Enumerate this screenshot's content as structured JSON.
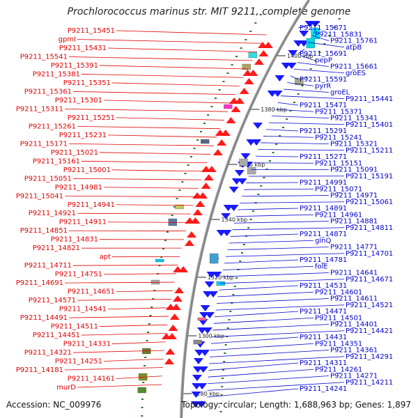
{
  "title": "Prochlorococcus marinus str. MIT 9211, complete genome",
  "footer": {
    "accession": "Accession: NC_009976",
    "info": "Topology: circular; Length: 1,688,963 bp; Genes: 1,897"
  },
  "colors": {
    "left_label": "#e00000",
    "right_label": "#0000cc",
    "forward_gene": "#ff1a1a",
    "reverse_gene": "#1a1aff",
    "backbone": "#888888",
    "tick": "#227722"
  },
  "kbp_marks": [
    "1400 kbp",
    "1380 kbp",
    "1360 kbp",
    "1340 kbp",
    "1320 kbp",
    "1300 kbp",
    "1280 kbp"
  ],
  "left_labels": [
    "P9211_15451",
    "gpmI",
    "P9211_15431",
    "P9211_15541",
    "P9211_15391",
    "P9211_15381",
    "P9211_15351",
    "P9211_15361",
    "P9211_15301",
    "P9211_15311",
    "P9211_15251",
    "P9211_15261",
    "P9211_15231",
    "P9211_15171",
    "P9211_15021",
    "P9211_15161",
    "P9211_15001",
    "P9211_15051",
    "P9211_14981",
    "P9211_15041",
    "P9211_14941",
    "P9211_14921",
    "P9211_14911",
    "P9211_14851",
    "P9211_14831",
    "P9211_14821",
    "apt",
    "P9211_14711",
    "P9211_14751",
    "P9211_14691",
    "P9211_14651",
    "P9211_14571",
    "P9211_14541",
    "P9211_14491",
    "P9211_14511",
    "P9211_14451",
    "P9211_14331",
    "P9211_14321",
    "P9211_14251",
    "P9211_14181",
    "P9211_14161",
    "murD"
  ],
  "right_labels": [
    "P9211_15871",
    "P9211_15831",
    "P9211_15761",
    "atpB",
    "P9211_15691",
    "pepP",
    "P9211_15661",
    "groES",
    "P9211_15591",
    "pyrR",
    "groEL",
    "P9211_15441",
    "P9211_15471",
    "P9211_15371",
    "P9211_15341",
    "P9211_15401",
    "P9211_15291",
    "P9211_15241",
    "P9211_15321",
    "P9211_15211",
    "P9211_15271",
    "P9211_15151",
    "P9211_15091",
    "P9211_15191",
    "P9211_14991",
    "P9211_15071",
    "P9211_14971",
    "P9211_15061",
    "P9211_14891",
    "P9211_14961",
    "P9211_14881",
    "P9211_14811",
    "P9211_14871",
    "glnQ",
    "P9211_14771",
    "P9211_14701",
    "P9211_14781",
    "folE",
    "P9211_14641",
    "P9211_14671",
    "P9211_14531",
    "P9211_14601",
    "P9211_14611",
    "P9211_14521",
    "P9211_14471",
    "P9211_14501",
    "P9211_14401",
    "P9211_14421",
    "P9211_14431",
    "P9211_14351",
    "P9211_14361",
    "P9211_14291",
    "P9211_14311",
    "P9211_14261",
    "P9211_14271",
    "P9211_14211",
    "P9211_14241"
  ]
}
